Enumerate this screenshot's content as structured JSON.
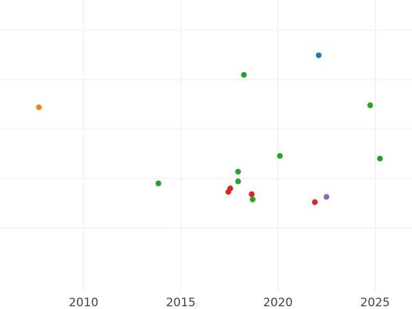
{
  "chart_data": {
    "type": "scatter",
    "title": "",
    "xlabel": "",
    "ylabel": "",
    "xlim": [
      2005.7,
      2026.9
    ],
    "ylim": [
      0,
      1
    ],
    "grid": true,
    "x_ticks": [
      2010,
      2015,
      2020,
      2025
    ],
    "x_tick_labels": [
      "2010",
      "2015",
      "2020",
      "2025"
    ],
    "y_ticks": [
      0.22,
      0.389,
      0.558,
      0.727,
      0.896
    ],
    "series": [
      {
        "color": "#1f77b4",
        "points": [
          {
            "x": 2022.1,
            "y": 0.811
          }
        ]
      },
      {
        "color": "#ff7f0e",
        "points": [
          {
            "x": 2007.7,
            "y": 0.633
          }
        ]
      },
      {
        "color": "#2ca02c",
        "points": [
          {
            "x": 2018.25,
            "y": 0.744
          },
          {
            "x": 2024.75,
            "y": 0.64
          },
          {
            "x": 2020.1,
            "y": 0.467
          },
          {
            "x": 2025.25,
            "y": 0.458
          },
          {
            "x": 2017.95,
            "y": 0.413
          },
          {
            "x": 2017.95,
            "y": 0.38
          },
          {
            "x": 2013.85,
            "y": 0.373
          },
          {
            "x": 2018.7,
            "y": 0.318
          }
        ]
      },
      {
        "color": "#d62728",
        "points": [
          {
            "x": 2017.55,
            "y": 0.356
          },
          {
            "x": 2017.45,
            "y": 0.344
          },
          {
            "x": 2018.65,
            "y": 0.336
          },
          {
            "x": 2021.9,
            "y": 0.309
          }
        ]
      },
      {
        "color": "#9467bd",
        "points": [
          {
            "x": 2022.5,
            "y": 0.327
          }
        ]
      }
    ]
  }
}
